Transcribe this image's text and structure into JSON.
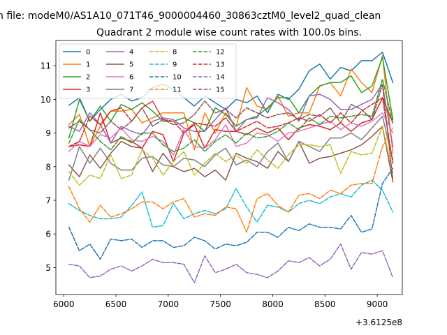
{
  "chart_data": {
    "type": "line",
    "suptitle": "n file: modeM0/AS1A10_071T46_9000004460_30863cztM0_level2_quad_clean",
    "title": "Quadrant 2 module wise count rates with 100.0s bins.",
    "xlabel": "",
    "ylabel": "",
    "x_offset_label": "+3.6125e8",
    "xlim": [
      5925,
      9240
    ],
    "ylim": [
      4.2,
      11.75
    ],
    "x_ticks": [
      6000,
      6500,
      7000,
      7500,
      8000,
      8500,
      9000
    ],
    "x_tick_labels": [
      "6000",
      "6500",
      "7000",
      "7500",
      "8000",
      "8500",
      "9000"
    ],
    "y_ticks": [
      5,
      6,
      7,
      8,
      9,
      10,
      11
    ],
    "y_tick_labels": [
      "5",
      "6",
      "7",
      "8",
      "9",
      "10",
      "11"
    ],
    "grid": false,
    "legend_location": "upper-left",
    "x": [
      6050,
      6150,
      6250,
      6350,
      6450,
      6550,
      6650,
      6750,
      6850,
      6950,
      7050,
      7150,
      7250,
      7350,
      7450,
      7550,
      7650,
      7750,
      7850,
      7950,
      8050,
      8150,
      8250,
      8350,
      8450,
      8550,
      8650,
      8750,
      8850,
      8950,
      9050,
      9150
    ],
    "series": [
      {
        "name": "0",
        "color": "#1f77b4",
        "dash": "solid",
        "values": [
          9.82,
          10.05,
          9.35,
          9.7,
          10.0,
          10.15,
          9.95,
          10.05,
          10.35,
          10.45,
          10.3,
          10.05,
          9.8,
          10.1,
          9.9,
          9.7,
          10.0,
          9.9,
          10.1,
          9.6,
          10.15,
          10.0,
          10.3,
          10.85,
          11.05,
          10.6,
          10.95,
          10.85,
          11.15,
          11.15,
          11.4,
          10.5
        ]
      },
      {
        "name": "1",
        "color": "#ff7f0e",
        "dash": "solid",
        "values": [
          9.25,
          9.55,
          8.6,
          9.2,
          9.65,
          9.65,
          9.7,
          9.3,
          9.45,
          9.6,
          9.6,
          9.6,
          8.5,
          9.6,
          9.0,
          9.6,
          9.2,
          10.35,
          9.8,
          9.7,
          10.1,
          9.5,
          9.6,
          9.6,
          10.4,
          10.5,
          10.1,
          10.9,
          10.5,
          10.2,
          11.3,
          8.4
        ]
      },
      {
        "name": "2",
        "color": "#2ca02c",
        "dash": "solid",
        "values": [
          8.85,
          10.0,
          9.35,
          9.8,
          9.35,
          9.85,
          9.7,
          9.9,
          9.65,
          9.35,
          9.35,
          9.45,
          9.3,
          9.05,
          9.75,
          9.55,
          9.2,
          9.4,
          9.5,
          9.75,
          10.05,
          10.05,
          9.6,
          10.1,
          10.4,
          10.5,
          10.5,
          10.7,
          10.2,
          10.4,
          11.25,
          9.4
        ]
      },
      {
        "name": "3",
        "color": "#d62728",
        "dash": "solid",
        "values": [
          8.6,
          8.65,
          8.6,
          9.6,
          8.7,
          8.85,
          8.75,
          8.55,
          9.05,
          8.95,
          8.15,
          9.0,
          9.25,
          8.55,
          9.1,
          9.05,
          9.05,
          8.95,
          9.15,
          9.0,
          9.15,
          8.8,
          9.15,
          9.25,
          9.2,
          9.1,
          9.3,
          9.05,
          9.3,
          9.4,
          10.05,
          9.3
        ]
      },
      {
        "name": "4",
        "color": "#9467bd",
        "dash": "solid",
        "values": [
          9.2,
          9.05,
          9.6,
          9.25,
          8.7,
          9.2,
          9.05,
          8.95,
          9.35,
          9.45,
          9.4,
          9.15,
          9.05,
          9.05,
          9.4,
          9.75,
          9.05,
          9.4,
          9.45,
          10.05,
          9.9,
          9.7,
          9.35,
          10.1,
          10.15,
          10.0,
          9.7,
          9.7,
          9.85,
          10.0,
          10.45,
          8.6
        ]
      },
      {
        "name": "5",
        "color": "#8c564b",
        "dash": "solid",
        "values": [
          8.05,
          7.7,
          8.35,
          7.95,
          8.4,
          8.75,
          8.6,
          8.55,
          7.85,
          8.4,
          8.0,
          7.85,
          7.95,
          7.7,
          7.9,
          7.6,
          8.4,
          8.25,
          8.15,
          7.95,
          8.45,
          8.15,
          8.75,
          8.1,
          8.25,
          8.3,
          8.4,
          8.5,
          8.65,
          8.9,
          9.2,
          7.55
        ]
      },
      {
        "name": "6",
        "color": "#e377c2",
        "dash": "solid",
        "values": [
          8.45,
          8.75,
          8.6,
          8.95,
          8.85,
          9.15,
          8.8,
          8.75,
          8.9,
          8.75,
          8.35,
          9.1,
          8.6,
          8.55,
          8.8,
          9.25,
          8.6,
          8.7,
          9.0,
          8.95,
          8.75,
          9.0,
          9.05,
          9.15,
          9.25,
          9.35,
          9.1,
          9.3,
          9.2,
          9.35,
          9.6,
          9.0
        ]
      },
      {
        "name": "7",
        "color": "#7f7f7f",
        "dash": "solid",
        "values": [
          7.6,
          8.6,
          8.1,
          8.55,
          8.1,
          7.9,
          7.9,
          8.25,
          8.3,
          8.05,
          8.0,
          8.25,
          8.2,
          8.0,
          8.35,
          8.55,
          8.05,
          8.2,
          8.0,
          8.45,
          8.7,
          8.15,
          8.75,
          8.6,
          8.45,
          8.85,
          8.85,
          9.0,
          8.8,
          9.15,
          9.5,
          8.2
        ]
      },
      {
        "name": "8",
        "color": "#bcbd22",
        "dash": "dashed",
        "values": [
          7.85,
          7.45,
          7.75,
          7.65,
          8.35,
          7.65,
          7.75,
          8.5,
          8.25,
          7.75,
          8.15,
          8.45,
          7.75,
          8.1,
          8.4,
          8.15,
          8.35,
          8.1,
          8.5,
          8.2,
          7.95,
          8.35,
          8.65,
          8.65,
          8.6,
          8.65,
          7.8,
          8.45,
          8.35,
          8.4,
          9.2,
          7.8
        ]
      },
      {
        "name": "9",
        "color": "#17becf",
        "dash": "dashed",
        "values": [
          6.9,
          6.7,
          6.55,
          6.45,
          6.45,
          6.5,
          6.85,
          7.25,
          6.2,
          6.25,
          6.9,
          6.45,
          6.6,
          6.7,
          6.6,
          6.75,
          7.35,
          6.8,
          6.35,
          6.85,
          6.8,
          6.65,
          6.9,
          7.0,
          6.9,
          7.1,
          7.2,
          7.1,
          7.45,
          7.6,
          7.3,
          6.65
        ]
      },
      {
        "name": "10",
        "color": "#1f77b4",
        "dash": "dashed",
        "values": [
          6.2,
          5.5,
          5.7,
          5.25,
          5.85,
          5.8,
          5.85,
          5.6,
          5.8,
          5.8,
          5.6,
          5.65,
          5.9,
          5.8,
          5.55,
          5.7,
          5.65,
          5.75,
          6.05,
          6.05,
          5.9,
          6.2,
          6.1,
          6.3,
          6.2,
          6.2,
          6.15,
          6.55,
          6.05,
          6.15,
          7.5,
          7.95
        ]
      },
      {
        "name": "11",
        "color": "#ff7f0e",
        "dash": "dashed",
        "values": [
          7.4,
          6.75,
          6.35,
          6.85,
          6.5,
          6.6,
          6.75,
          6.95,
          6.95,
          6.75,
          6.95,
          7.05,
          6.5,
          6.6,
          6.55,
          6.8,
          6.75,
          6.05,
          7.05,
          7.2,
          6.85,
          6.65,
          7.15,
          7.2,
          7.05,
          7.3,
          7.2,
          7.45,
          7.5,
          7.5,
          8.6,
          9.15
        ]
      },
      {
        "name": "12",
        "color": "#2ca02c",
        "dash": "dashed",
        "values": [
          8.7,
          9.4,
          9.1,
          8.75,
          8.5,
          8.9,
          8.7,
          9.0,
          9.0,
          8.65,
          8.45,
          8.55,
          8.8,
          8.45,
          8.75,
          8.95,
          8.7,
          9.0,
          8.85,
          8.9,
          9.05,
          9.3,
          9.1,
          9.45,
          9.25,
          9.5,
          9.45,
          9.5,
          9.55,
          9.5,
          10.6,
          9.3
        ]
      },
      {
        "name": "13",
        "color": "#d62728",
        "dash": "dashed",
        "values": [
          8.6,
          8.75,
          9.5,
          9.25,
          9.65,
          9.75,
          9.35,
          9.75,
          9.95,
          9.4,
          9.35,
          9.0,
          9.3,
          9.25,
          9.2,
          9.45,
          9.05,
          9.2,
          9.35,
          9.15,
          9.2,
          9.3,
          9.45,
          9.35,
          9.55,
          9.3,
          9.6,
          9.3,
          9.65,
          9.85,
          10.05,
          8.1
        ]
      },
      {
        "name": "14",
        "color": "#9467bd",
        "dash": "dashed",
        "values": [
          5.1,
          5.05,
          4.7,
          4.75,
          4.95,
          5.05,
          4.9,
          5.05,
          5.25,
          5.15,
          5.15,
          5.1,
          4.55,
          5.35,
          4.85,
          4.95,
          5.1,
          4.85,
          4.8,
          4.7,
          4.9,
          5.2,
          5.15,
          5.3,
          5.05,
          5.25,
          5.7,
          4.95,
          5.45,
          5.4,
          5.5,
          4.7
        ]
      },
      {
        "name": "15",
        "color": "#8c564b",
        "dash": "dashed",
        "values": [
          9.15,
          9.35,
          9.1,
          9.0,
          9.35,
          9.1,
          9.35,
          9.75,
          9.2,
          9.4,
          9.25,
          9.3,
          9.55,
          9.95,
          9.6,
          9.7,
          9.45,
          9.75,
          9.6,
          9.45,
          9.55,
          9.6,
          9.4,
          9.55,
          9.5,
          9.75,
          9.3,
          9.85,
          9.7,
          9.4,
          10.45,
          7.6
        ]
      }
    ]
  }
}
